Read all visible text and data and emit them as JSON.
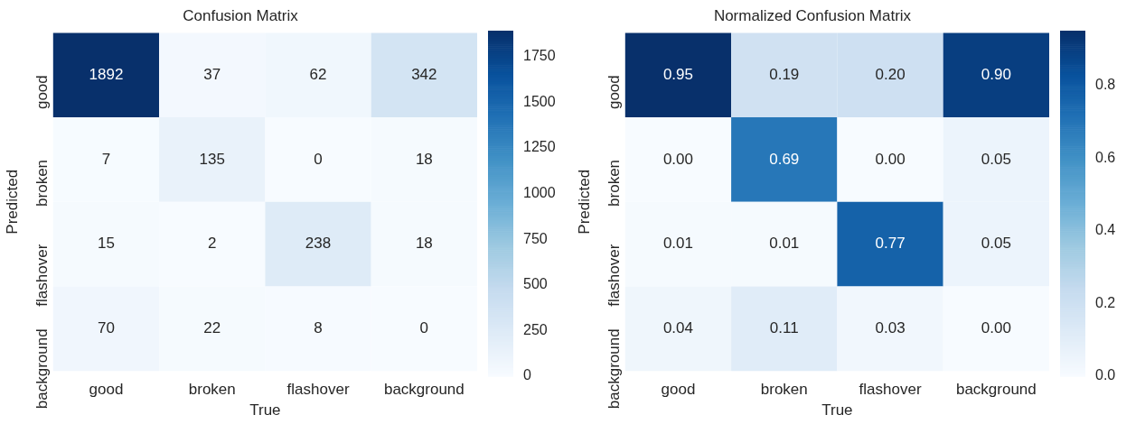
{
  "chart_data": [
    {
      "type": "heatmap",
      "title": "Confusion Matrix",
      "xlabel": "True",
      "ylabel": "Predicted",
      "categories": [
        "good",
        "broken",
        "flashover",
        "background"
      ],
      "y_categories": [
        "good",
        "broken",
        "flashover",
        "background"
      ],
      "cells": [
        [
          1892,
          37,
          62,
          342
        ],
        [
          7,
          135,
          0,
          18
        ],
        [
          15,
          2,
          238,
          18
        ],
        [
          70,
          22,
          8,
          0
        ]
      ],
      "data_labels": true,
      "clim": [
        0,
        1892
      ],
      "cticks": [
        0,
        250,
        500,
        750,
        1000,
        1250,
        1500,
        1750
      ]
    },
    {
      "type": "heatmap",
      "title": "Normalized Confusion Matrix",
      "xlabel": "True",
      "ylabel": "Predicted",
      "categories": [
        "good",
        "broken",
        "flashover",
        "background"
      ],
      "y_categories": [
        "good",
        "broken",
        "flashover",
        "background"
      ],
      "cells": [
        [
          0.95,
          0.19,
          0.2,
          0.9
        ],
        [
          0,
          0.69,
          0,
          0.05
        ],
        [
          0.01,
          0.01,
          0.77,
          0.05
        ],
        [
          0.04,
          0.11,
          0.03,
          0
        ]
      ],
      "cell_labels": [
        [
          "0.95",
          "0.19",
          "0.20",
          "0.90"
        ],
        [
          "0.00",
          "0.69",
          "0.00",
          "0.05"
        ],
        [
          "0.01",
          "0.01",
          "0.77",
          "0.05"
        ],
        [
          "0.04",
          "0.11",
          "0.03",
          "0.00"
        ]
      ],
      "clim": [
        0,
        0.95
      ],
      "cticks": [
        {
          "value": 0,
          "label": "0.0"
        },
        {
          "value": 0.2,
          "label": "0.2"
        },
        {
          "value": 0.4,
          "label": "0.4"
        },
        {
          "value": 0.6,
          "label": "0.6"
        },
        {
          "value": 0.8,
          "label": "0.8"
        }
      ]
    }
  ]
}
